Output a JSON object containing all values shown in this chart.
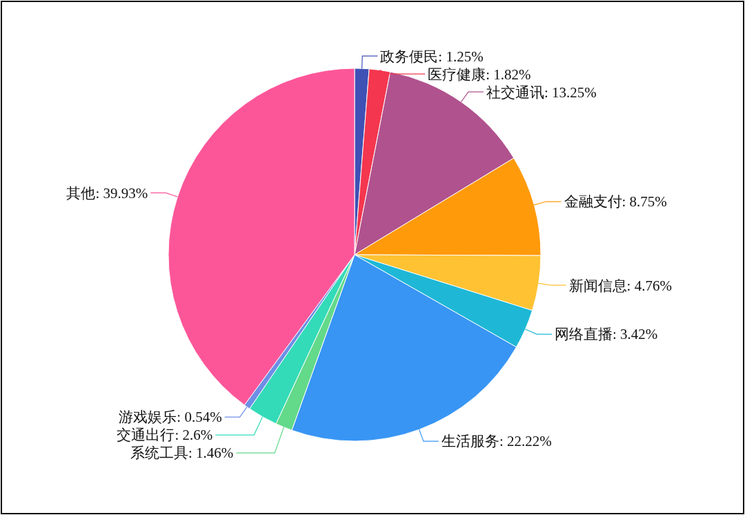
{
  "chart_data": {
    "type": "pie",
    "categories": [
      "政务便民",
      "医疗健康",
      "社交通讯",
      "金融支付",
      "新闻信息",
      "网络直播",
      "生活服务",
      "系统工具",
      "交通出行",
      "游戏娱乐",
      "其他"
    ],
    "values": [
      1.25,
      1.82,
      13.25,
      8.75,
      4.76,
      3.42,
      22.22,
      1.46,
      2.6,
      0.54,
      39.93
    ],
    "value_labels": [
      "1.25%",
      "1.82%",
      "13.25%",
      "8.75%",
      "4.76%",
      "3.42%",
      "22.22%",
      "1.46%",
      "2.6%",
      "0.54%",
      "39.93%"
    ],
    "colors": [
      "#3f51b5",
      "#f5364f",
      "#b0528e",
      "#ff9a0a",
      "#ffc233",
      "#1eb8d6",
      "#3895f4",
      "#63d98a",
      "#33dbb8",
      "#6e8ee6",
      "#fc5699"
    ]
  }
}
